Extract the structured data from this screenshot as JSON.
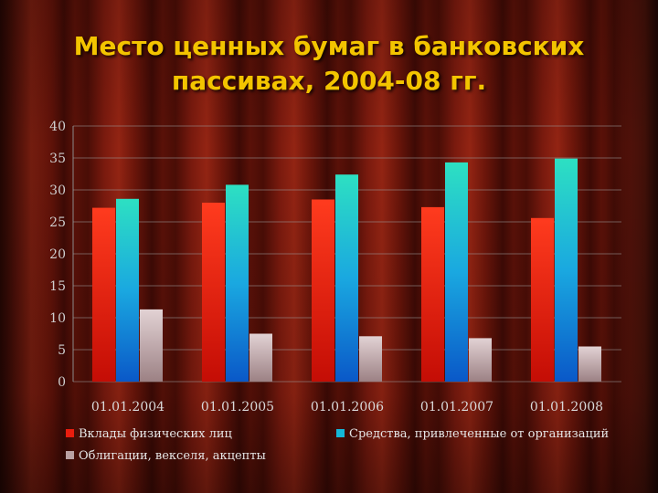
{
  "title_line1": "Место ценных бумаг в банковских",
  "title_line2": "пассивах, 2004-08 гг.",
  "chart_data": {
    "type": "bar",
    "categories": [
      "01.01.2004",
      "01.01.2005",
      "01.01.2006",
      "01.01.2007",
      "01.01.2008"
    ],
    "series": [
      {
        "name": "Вклады физических лиц",
        "values": [
          27.2,
          28.0,
          28.5,
          27.3,
          25.6
        ],
        "color": "#e81d0e"
      },
      {
        "name": "Средства, привлеченные от организаций",
        "values": [
          28.6,
          30.8,
          32.4,
          34.3,
          34.9
        ],
        "color": "#14b8d8"
      },
      {
        "name": "Облигации, векселя, акцепты",
        "values": [
          11.3,
          7.5,
          7.1,
          6.8,
          5.5
        ],
        "color": "#b9a1a3"
      }
    ],
    "ylim": [
      0,
      40
    ],
    "yticks": [
      0,
      5,
      10,
      15,
      20,
      25,
      30,
      35,
      40
    ],
    "grid": true,
    "legend_position": "bottom"
  }
}
